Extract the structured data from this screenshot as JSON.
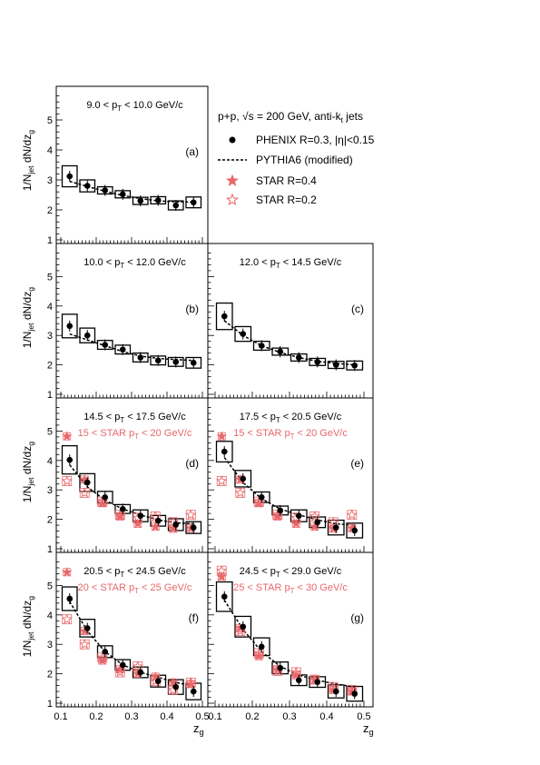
{
  "chart_data": {
    "type": "scatter",
    "x_axis": {
      "label": "z",
      "label_sub": "g",
      "range": [
        0.1,
        0.5
      ],
      "ticks": [
        "0.1",
        "0.2",
        "0.3",
        "0.4",
        "0.5"
      ]
    },
    "y_axis": {
      "label": "1/N",
      "label_sub": "jet",
      "label_tail": " dN/dz",
      "label_tail_sub": "g",
      "range": [
        1,
        6
      ],
      "ticks": [
        "1",
        "2",
        "3",
        "4",
        "5",
        "6"
      ]
    },
    "legend": {
      "header": "p+p, √s = 200 GeV, anti-k",
      "header_sub": "t",
      "header_tail": " jets",
      "entries": [
        {
          "marker": "filled-circle",
          "label": "PHENIX R=0.3, |η|<0.15"
        },
        {
          "marker": "dashed-line",
          "label": "PYTHIA6 (modified)"
        },
        {
          "marker": "filled-star",
          "label": "STAR R=0.4"
        },
        {
          "marker": "open-star",
          "label": "STAR R=0.2"
        }
      ],
      "placement": "top-right"
    },
    "colors": {
      "phenix": "#000000",
      "star": "#e8676a",
      "pythia": "#000000"
    },
    "bins": [
      0.1,
      0.15,
      0.2,
      0.25,
      0.3,
      0.35,
      0.4,
      0.45,
      0.5
    ],
    "x_centers": [
      0.125,
      0.175,
      0.225,
      0.275,
      0.325,
      0.375,
      0.425,
      0.475
    ],
    "panels": [
      {
        "tag": "(a)",
        "pt_prefix": "9.0 < p",
        "pt_sub": "T",
        "pt_suffix": " < 10.0 GeV/c",
        "phenix": [
          3.12,
          2.8,
          2.65,
          2.52,
          2.3,
          2.32,
          2.15,
          2.25
        ],
        "sys_half": [
          0.35,
          0.2,
          0.12,
          0.12,
          0.12,
          0.12,
          0.15,
          0.18
        ],
        "pythia": [
          2.95,
          2.78,
          2.62,
          2.48,
          2.38,
          2.3,
          2.27,
          2.26
        ]
      },
      {
        "tag": "(b)",
        "pt_prefix": "10.0 < p",
        "pt_sub": "T",
        "pt_suffix": " < 12.0 GeV/c",
        "phenix": [
          3.32,
          3.0,
          2.68,
          2.52,
          2.25,
          2.15,
          2.1,
          2.07
        ],
        "sys_half": [
          0.4,
          0.25,
          0.15,
          0.15,
          0.15,
          0.15,
          0.15,
          0.18
        ],
        "pythia": [
          3.05,
          2.85,
          2.65,
          2.45,
          2.3,
          2.22,
          2.18,
          2.15
        ]
      },
      {
        "tag": "(c)",
        "pt_prefix": "12.0 < p",
        "pt_sub": "T",
        "pt_suffix": " < 14.5 GeV/c",
        "phenix": [
          3.65,
          3.05,
          2.65,
          2.45,
          2.25,
          2.1,
          2.0,
          1.98
        ],
        "sys_half": [
          0.45,
          0.25,
          0.15,
          0.12,
          0.12,
          0.12,
          0.12,
          0.15
        ],
        "pythia": [
          3.5,
          3.0,
          2.65,
          2.42,
          2.25,
          2.12,
          2.05,
          2.0
        ]
      },
      {
        "tag": "(d)",
        "pt_prefix": "14.5 < p",
        "pt_sub": "T",
        "pt_suffix": " < 17.5 GeV/c",
        "star_prefix": "15 < STAR p",
        "star_sub": "T",
        "star_suffix": " < 20 GeV/c",
        "phenix": [
          4.02,
          3.25,
          2.75,
          2.35,
          2.12,
          1.95,
          1.82,
          1.72
        ],
        "sys_half": [
          0.48,
          0.3,
          0.2,
          0.15,
          0.2,
          0.18,
          0.2,
          0.2
        ],
        "pythia": [
          3.85,
          3.1,
          2.65,
          2.35,
          2.15,
          1.98,
          1.88,
          1.85
        ],
        "star_r04": [
          4.82,
          3.35,
          2.55,
          2.1,
          1.85,
          1.75,
          1.68,
          1.7
        ],
        "star_r02": [
          3.3,
          2.9,
          2.6,
          2.15,
          2.05,
          2.1,
          1.9,
          2.15
        ]
      },
      {
        "tag": "(e)",
        "pt_prefix": "17.5 < p",
        "pt_sub": "T",
        "pt_suffix": " < 20.5 GeV/c",
        "star_prefix": "15 < STAR p",
        "star_sub": "T",
        "star_suffix": " < 20 GeV/c",
        "phenix": [
          4.3,
          3.38,
          2.75,
          2.3,
          2.12,
          1.9,
          1.72,
          1.62
        ],
        "sys_half": [
          0.35,
          0.28,
          0.18,
          0.15,
          0.2,
          0.18,
          0.25,
          0.25
        ],
        "pythia": [
          4.1,
          3.25,
          2.7,
          2.35,
          2.15,
          1.98,
          1.85,
          1.8
        ],
        "star_r04": [
          4.82,
          3.35,
          2.55,
          2.1,
          1.85,
          1.75,
          1.68,
          1.7
        ],
        "star_r02": [
          3.3,
          2.9,
          2.6,
          2.15,
          2.05,
          2.1,
          1.9,
          2.15
        ]
      },
      {
        "tag": "(f)",
        "pt_prefix": "20.5 < p",
        "pt_sub": "T",
        "pt_suffix": " < 24.5 GeV/c",
        "star_prefix": "20 < STAR p",
        "star_sub": "T",
        "star_suffix": " < 25 GeV/c",
        "phenix": [
          4.55,
          3.55,
          2.75,
          2.3,
          2.05,
          1.75,
          1.55,
          1.4
        ],
        "sys_half": [
          0.4,
          0.3,
          0.2,
          0.18,
          0.18,
          0.2,
          0.25,
          0.28
        ],
        "pythia": [
          4.45,
          3.45,
          2.75,
          2.3,
          2.05,
          1.88,
          1.7,
          1.6
        ],
        "star_r04": [
          5.45,
          3.45,
          2.45,
          2.15,
          2.0,
          1.9,
          1.7,
          1.65
        ],
        "star_r02": [
          3.85,
          3.0,
          2.55,
          2.05,
          2.25,
          1.75,
          1.45,
          1.7
        ]
      },
      {
        "tag": "(g)",
        "pt_prefix": "24.5 < p",
        "pt_sub": "T",
        "pt_suffix": " < 29.0 GeV/c",
        "star_prefix": "25 < STAR p",
        "star_sub": "T",
        "star_suffix": " < 30 GeV/c",
        "phenix": [
          4.62,
          3.6,
          2.92,
          2.2,
          1.78,
          1.72,
          1.4,
          1.32
        ],
        "sys_half": [
          0.5,
          0.35,
          0.3,
          0.2,
          0.18,
          0.18,
          0.22,
          0.25
        ],
        "pythia": [
          4.5,
          3.5,
          2.75,
          2.25,
          1.95,
          1.78,
          1.65,
          1.55
        ],
        "star_r04": [
          5.3,
          3.55,
          2.6,
          2.15,
          1.95,
          1.8,
          1.45,
          1.4
        ],
        "star_r02": [
          5.5,
          3.45,
          2.7,
          2.1,
          2.05,
          1.8,
          1.55,
          1.45
        ]
      }
    ]
  }
}
